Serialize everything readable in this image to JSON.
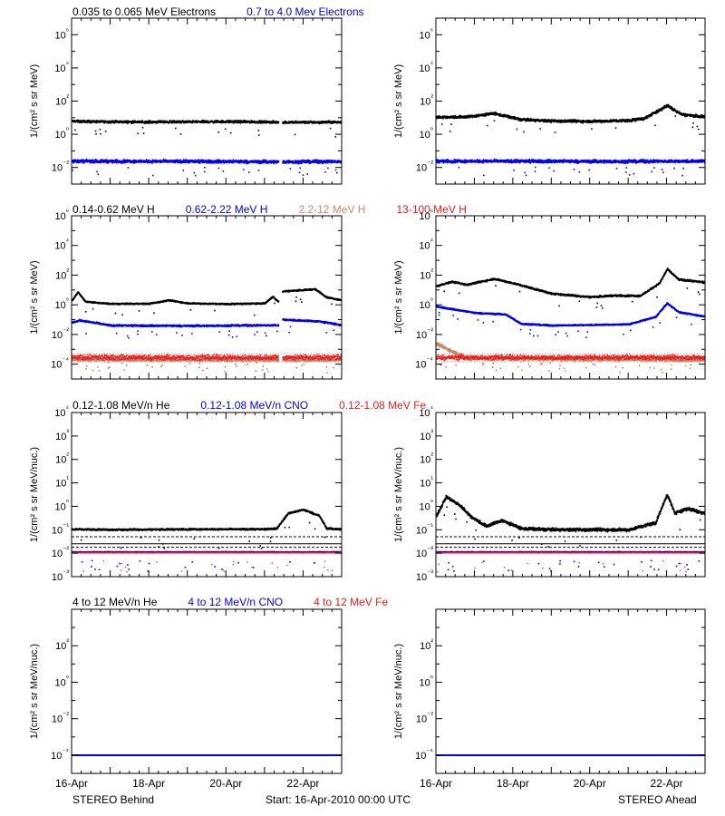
{
  "colors": {
    "black": "#000000",
    "blue": "#0000ee",
    "tan": "#c08a6a",
    "red": "#ee1c1c"
  },
  "x_axis": {
    "tick_labels": [
      "16-Apr",
      "18-Apr",
      "20-Apr",
      "22-Apr"
    ],
    "tick_days": [
      0,
      2,
      4,
      6
    ],
    "range_days": [
      0,
      7
    ]
  },
  "footer": {
    "left": "STEREO Behind",
    "center": "Start: 16-Apr-2010 00:00 UTC",
    "right": "STEREO Ahead"
  },
  "chart_data": [
    {
      "type": "scatter",
      "row": 1,
      "legend": [
        {
          "name": "0.035 to 0.065 MeV Electrons",
          "color": "black"
        },
        {
          "name": "0.7 to 4.0 Mev Electrons",
          "color": "blue"
        }
      ],
      "ylabel": "1/(cm² s sr MeV)",
      "yscale": "log",
      "ylim_exp": [
        -3,
        7
      ],
      "tick_exps": [
        -2,
        0,
        2,
        4,
        6
      ],
      "tick_labels": [
        "10⁻²",
        "10⁰",
        "10²",
        "10⁴",
        "10⁶"
      ],
      "panels": [
        {
          "spacecraft": "STEREO Behind",
          "gaps": [
            [
              5.35,
              5.45
            ]
          ],
          "series": [
            {
              "color": "black",
              "noise": 0.06,
              "points": [
                [
                  0,
                  0.78
                ],
                [
                  1,
                  0.75
                ],
                [
                  2,
                  0.74
                ],
                [
                  3,
                  0.75
                ],
                [
                  4,
                  0.76
                ],
                [
                  5,
                  0.74
                ],
                [
                  5.4,
                  0.72
                ],
                [
                  6,
                  0.72
                ],
                [
                  7,
                  0.73
                ]
              ]
            },
            {
              "color": "blue",
              "noise": 0.08,
              "points": [
                [
                  0,
                  -1.62
                ],
                [
                  3,
                  -1.64
                ],
                [
                  5.4,
                  -1.66
                ],
                [
                  7,
                  -1.65
                ]
              ]
            }
          ]
        },
        {
          "spacecraft": "STEREO Ahead",
          "gaps": [],
          "series": [
            {
              "color": "black",
              "noise": 0.07,
              "points": [
                [
                  0,
                  1.02
                ],
                [
                  0.8,
                  1.05
                ],
                [
                  1.5,
                  1.25
                ],
                [
                  2.2,
                  0.88
                ],
                [
                  3,
                  0.8
                ],
                [
                  4,
                  0.78
                ],
                [
                  5,
                  0.83
                ],
                [
                  5.4,
                  0.95
                ],
                [
                  6.0,
                  1.72
                ],
                [
                  6.4,
                  1.18
                ],
                [
                  7,
                  1.05
                ]
              ]
            },
            {
              "color": "blue",
              "noise": 0.08,
              "points": [
                [
                  0,
                  -1.62
                ],
                [
                  3,
                  -1.63
                ],
                [
                  5,
                  -1.64
                ],
                [
                  7,
                  -1.62
                ]
              ]
            }
          ]
        }
      ]
    },
    {
      "type": "scatter",
      "row": 2,
      "legend": [
        {
          "name": "0.14-0.62 MeV H",
          "color": "black"
        },
        {
          "name": "0.62-2.22 MeV H",
          "color": "blue"
        },
        {
          "name": "2.2-12 MeV H",
          "color": "tan"
        },
        {
          "name": "13-100 MeV H",
          "color": "red"
        }
      ],
      "ylabel": "1/(cm² s sr MeV)",
      "yscale": "log",
      "ylim_exp": [
        -5,
        6
      ],
      "tick_exps": [
        -4,
        -2,
        0,
        2,
        4,
        6
      ],
      "tick_labels": [
        "10⁻⁴",
        "10⁻²",
        "10⁰",
        "10²",
        "10⁴",
        "10⁶"
      ],
      "panels": [
        {
          "spacecraft": "STEREO Behind",
          "gaps": [
            [
              5.35,
              5.45
            ]
          ],
          "series": [
            {
              "color": "black",
              "noise": 0.04,
              "points": [
                [
                  0,
                  0.3
                ],
                [
                  0.15,
                  0.85
                ],
                [
                  0.35,
                  0.2
                ],
                [
                  1,
                  0.06
                ],
                [
                  2,
                  0.07
                ],
                [
                  2.5,
                  0.3
                ],
                [
                  3,
                  0.1
                ],
                [
                  4,
                  0.05
                ],
                [
                  5,
                  0.1
                ],
                [
                  5.2,
                  0.55
                ],
                [
                  5.35,
                  0.2
                ],
                [
                  5.45,
                  0.9
                ],
                [
                  6.3,
                  1.05
                ],
                [
                  6.6,
                  0.5
                ],
                [
                  7,
                  0.3
                ]
              ]
            },
            {
              "color": "blue",
              "noise": 0.05,
              "points": [
                [
                  0,
                  -1.2
                ],
                [
                  0.2,
                  -1.05
                ],
                [
                  1,
                  -1.4
                ],
                [
                  3,
                  -1.42
                ],
                [
                  5.35,
                  -1.38
                ],
                [
                  5.45,
                  -1.0
                ],
                [
                  6.4,
                  -1.12
                ],
                [
                  7,
                  -1.38
                ]
              ]
            },
            {
              "color": "tan",
              "noise": 0.08,
              "points": [
                [
                  0,
                  -3.7
                ],
                [
                  7,
                  -3.72
                ]
              ]
            },
            {
              "color": "red",
              "noise": 0.15,
              "points": [
                [
                  0,
                  -3.55
                ],
                [
                  7,
                  -3.55
                ]
              ]
            }
          ]
        },
        {
          "spacecraft": "STEREO Ahead",
          "gaps": [],
          "series": [
            {
              "color": "black",
              "noise": 0.05,
              "points": [
                [
                  0,
                  1.25
                ],
                [
                  0.4,
                  1.55
                ],
                [
                  0.8,
                  1.35
                ],
                [
                  1.5,
                  1.75
                ],
                [
                  2.0,
                  1.45
                ],
                [
                  3,
                  0.75
                ],
                [
                  4,
                  0.52
                ],
                [
                  4.6,
                  0.62
                ],
                [
                  5.3,
                  0.6
                ],
                [
                  5.8,
                  1.45
                ],
                [
                  6.0,
                  2.4
                ],
                [
                  6.3,
                  1.7
                ],
                [
                  7,
                  1.5
                ]
              ]
            },
            {
              "color": "blue",
              "noise": 0.04,
              "points": [
                [
                  0,
                  -0.12
                ],
                [
                  1,
                  -0.55
                ],
                [
                  1.8,
                  -0.65
                ],
                [
                  2.2,
                  -1.28
                ],
                [
                  3,
                  -1.4
                ],
                [
                  5,
                  -1.32
                ],
                [
                  5.7,
                  -0.82
                ],
                [
                  6.0,
                  0.1
                ],
                [
                  6.3,
                  -0.5
                ],
                [
                  7,
                  -0.8
                ]
              ]
            },
            {
              "color": "tan",
              "noise": 0.1,
              "points": [
                [
                  0,
                  -2.65
                ],
                [
                  0.3,
                  -3.0
                ],
                [
                  0.8,
                  -3.6
                ],
                [
                  7,
                  -3.72
                ]
              ]
            },
            {
              "color": "red",
              "noise": 0.14,
              "points": [
                [
                  0,
                  -3.55
                ],
                [
                  7,
                  -3.55
                ]
              ]
            }
          ]
        }
      ]
    },
    {
      "type": "scatter",
      "row": 3,
      "legend": [
        {
          "name": "0.12-1.08 MeV/n He",
          "color": "black"
        },
        {
          "name": "0.12-1.08 MeV/n CNO",
          "color": "blue"
        },
        {
          "name": "0.12-1.08 MeV Fe",
          "color": "red"
        }
      ],
      "ylabel": "1/(cm² s sr MeV/nuc.)",
      "yscale": "log",
      "ylim_exp": [
        -3,
        4
      ],
      "tick_exps": [
        -3,
        -2,
        -1,
        0,
        1,
        2,
        3,
        4
      ],
      "tick_labels": [
        "10⁻³",
        "10⁻²",
        "10⁻¹",
        "10⁰",
        "10¹",
        "10²",
        "10³",
        "10⁴"
      ],
      "panels": [
        {
          "spacecraft": "STEREO Behind",
          "gaps": [],
          "series": [
            {
              "color": "black",
              "noise": 0.03,
              "points": [
                [
                  0,
                  -0.98
                ],
                [
                  1,
                  -1.0
                ],
                [
                  3,
                  -0.98
                ],
                [
                  5,
                  -0.98
                ],
                [
                  5.3,
                  -0.95
                ],
                [
                  5.6,
                  -0.3
                ],
                [
                  6.0,
                  -0.15
                ],
                [
                  6.4,
                  -0.4
                ],
                [
                  6.6,
                  -0.95
                ],
                [
                  7,
                  -0.98
                ]
              ]
            },
            {
              "color": "blue",
              "noise": 0.01,
              "points": [
                [
                  0,
                  -1.95
                ],
                [
                  7,
                  -1.95
                ]
              ]
            },
            {
              "color": "red",
              "noise": 0.01,
              "points": [
                [
                  0,
                  -1.98
                ],
                [
                  7,
                  -1.98
                ]
              ]
            }
          ]
        },
        {
          "spacecraft": "STEREO Ahead",
          "gaps": [],
          "series": [
            {
              "color": "black",
              "noise": 0.06,
              "points": [
                [
                  0,
                  -0.4
                ],
                [
                  0.25,
                  0.4
                ],
                [
                  0.6,
                  0.05
                ],
                [
                  0.9,
                  -0.45
                ],
                [
                  1.3,
                  -0.85
                ],
                [
                  1.7,
                  -0.6
                ],
                [
                  2.2,
                  -0.95
                ],
                [
                  3,
                  -1.0
                ],
                [
                  5,
                  -1.0
                ],
                [
                  5.7,
                  -0.7
                ],
                [
                  6.0,
                  0.5
                ],
                [
                  6.2,
                  -0.3
                ],
                [
                  6.5,
                  -0.1
                ],
                [
                  7,
                  -0.3
                ]
              ]
            },
            {
              "color": "blue",
              "noise": 0.01,
              "points": [
                [
                  0,
                  -1.95
                ],
                [
                  7,
                  -1.95
                ]
              ]
            },
            {
              "color": "red",
              "noise": 0.01,
              "points": [
                [
                  0,
                  -1.98
                ],
                [
                  7,
                  -1.98
                ]
              ]
            }
          ]
        }
      ]
    },
    {
      "type": "scatter",
      "row": 4,
      "legend": [
        {
          "name": "4 to 12 MeV/n He",
          "color": "black"
        },
        {
          "name": "4 to 12 MeV/n CNO",
          "color": "blue"
        },
        {
          "name": "4 to 12 MeV Fe",
          "color": "red"
        }
      ],
      "ylabel": "1/(cm² s sr MeV/nuc.)",
      "yscale": "log",
      "ylim_exp": [
        -5,
        4
      ],
      "tick_exps": [
        -4,
        -2,
        0,
        2
      ],
      "tick_labels": [
        "10⁻⁴",
        "10⁻²",
        "10⁰",
        "10²"
      ],
      "panels": [
        {
          "spacecraft": "STEREO Behind",
          "gaps": [],
          "series": [
            {
              "color": "black",
              "noise": 0.0,
              "points": [
                [
                  0,
                  -4.0
                ],
                [
                  7,
                  -4.0
                ]
              ]
            },
            {
              "color": "blue",
              "noise": 0.0,
              "points": [
                [
                  0,
                  -4.0
                ],
                [
                  7,
                  -4.0
                ]
              ]
            }
          ]
        },
        {
          "spacecraft": "STEREO Ahead",
          "gaps": [],
          "series": [
            {
              "color": "black",
              "noise": 0.0,
              "points": [
                [
                  0,
                  -4.0
                ],
                [
                  7,
                  -4.0
                ]
              ]
            },
            {
              "color": "blue",
              "noise": 0.0,
              "points": [
                [
                  0,
                  -4.0
                ],
                [
                  7,
                  -4.0
                ]
              ]
            }
          ]
        }
      ]
    }
  ]
}
